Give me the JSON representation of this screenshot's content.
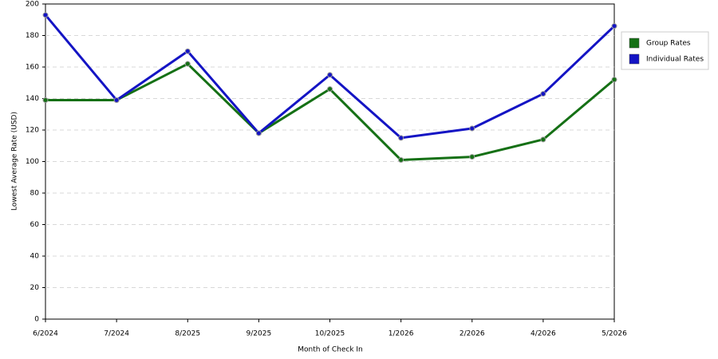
{
  "chart_data": {
    "type": "line",
    "x_label": "Month of Check In",
    "y_label": "Lowest Average Rate (USD)",
    "categories": [
      "6/2024",
      "7/2024",
      "8/2025",
      "9/2025",
      "10/2025",
      "1/2026",
      "2/2026",
      "4/2026",
      "5/2026"
    ],
    "series": [
      {
        "name": "Group Rates",
        "color": "#157015",
        "values": [
          139,
          139,
          162,
          118,
          146,
          101,
          103,
          114,
          152
        ]
      },
      {
        "name": "Individual Rates",
        "color": "#1414c4",
        "values": [
          193,
          139,
          170,
          118,
          155,
          115,
          121,
          143,
          186
        ]
      }
    ],
    "ylim": [
      0,
      200
    ],
    "yticks": [
      0,
      20,
      40,
      60,
      80,
      100,
      120,
      140,
      160,
      180,
      200
    ],
    "grid": true,
    "legend": "right"
  }
}
